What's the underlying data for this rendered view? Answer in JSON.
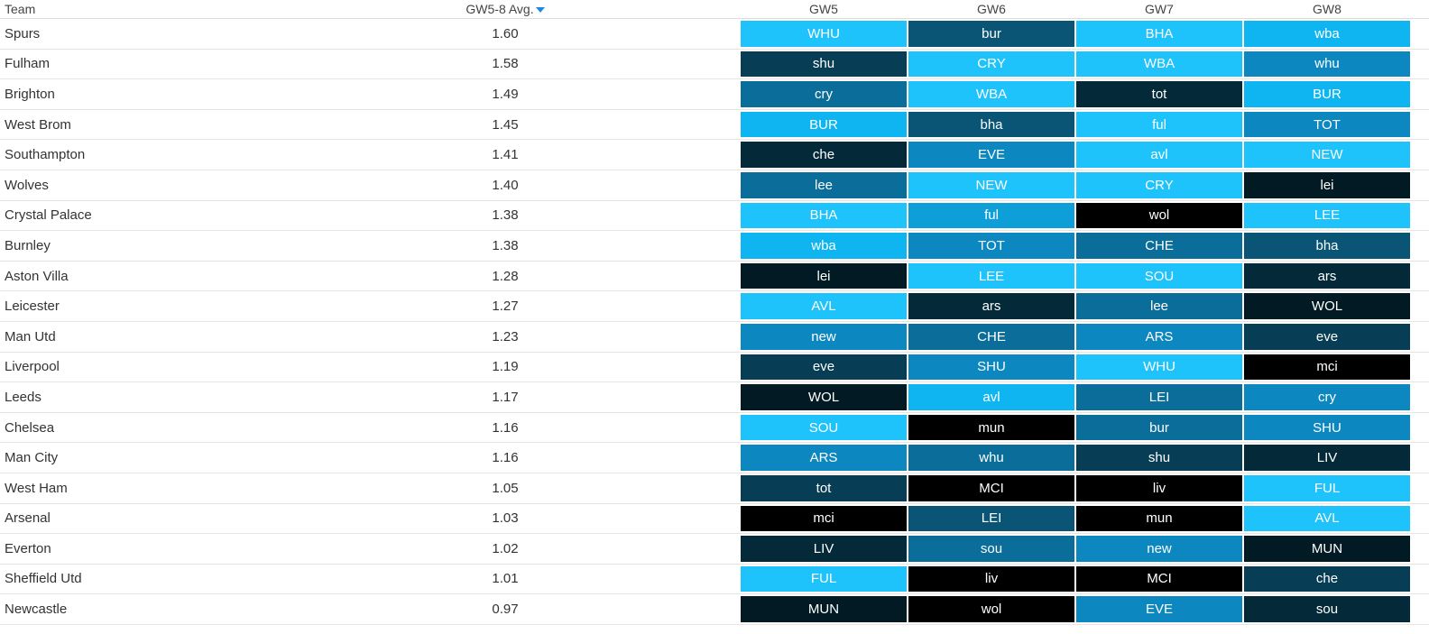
{
  "header": {
    "team": "Team",
    "avg": "GW5-8 Avg.",
    "gws": [
      "GW5",
      "GW6",
      "GW7",
      "GW8"
    ]
  },
  "palette": {
    "1": "#1ec3fb",
    "2": "#0eb5f0",
    "3": "#0f9fd8",
    "4": "#0c87c0",
    "5": "#0b6e9a",
    "6": "#0a5576",
    "7": "#073e56",
    "8": "#042a3a",
    "9": "#021a24",
    "10": "#000000"
  },
  "rows": [
    {
      "team": "Spurs",
      "avg": "1.60",
      "fixtures": [
        {
          "opp": "WHU",
          "level": 1
        },
        {
          "opp": "bur",
          "level": 6
        },
        {
          "opp": "BHA",
          "level": 1
        },
        {
          "opp": "wba",
          "level": 2
        }
      ]
    },
    {
      "team": "Fulham",
      "avg": "1.58",
      "fixtures": [
        {
          "opp": "shu",
          "level": 7
        },
        {
          "opp": "CRY",
          "level": 1
        },
        {
          "opp": "WBA",
          "level": 1
        },
        {
          "opp": "whu",
          "level": 4
        }
      ]
    },
    {
      "team": "Brighton",
      "avg": "1.49",
      "fixtures": [
        {
          "opp": "cry",
          "level": 5
        },
        {
          "opp": "WBA",
          "level": 1
        },
        {
          "opp": "tot",
          "level": 8
        },
        {
          "opp": "BUR",
          "level": 2
        }
      ]
    },
    {
      "team": "West Brom",
      "avg": "1.45",
      "fixtures": [
        {
          "opp": "BUR",
          "level": 2
        },
        {
          "opp": "bha",
          "level": 6
        },
        {
          "opp": "ful",
          "level": 1
        },
        {
          "opp": "TOT",
          "level": 4
        }
      ]
    },
    {
      "team": "Southampton",
      "avg": "1.41",
      "fixtures": [
        {
          "opp": "che",
          "level": 8
        },
        {
          "opp": "EVE",
          "level": 4
        },
        {
          "opp": "avl",
          "level": 1
        },
        {
          "opp": "NEW",
          "level": 1
        }
      ]
    },
    {
      "team": "Wolves",
      "avg": "1.40",
      "fixtures": [
        {
          "opp": "lee",
          "level": 5
        },
        {
          "opp": "NEW",
          "level": 1
        },
        {
          "opp": "CRY",
          "level": 1
        },
        {
          "opp": "lei",
          "level": 9
        }
      ]
    },
    {
      "team": "Crystal Palace",
      "avg": "1.38",
      "fixtures": [
        {
          "opp": "BHA",
          "level": 1
        },
        {
          "opp": "ful",
          "level": 3
        },
        {
          "opp": "wol",
          "level": 10
        },
        {
          "opp": "LEE",
          "level": 1
        }
      ]
    },
    {
      "team": "Burnley",
      "avg": "1.38",
      "fixtures": [
        {
          "opp": "wba",
          "level": 2
        },
        {
          "opp": "TOT",
          "level": 4
        },
        {
          "opp": "CHE",
          "level": 5
        },
        {
          "opp": "bha",
          "level": 6
        }
      ]
    },
    {
      "team": "Aston Villa",
      "avg": "1.28",
      "fixtures": [
        {
          "opp": "lei",
          "level": 9
        },
        {
          "opp": "LEE",
          "level": 1
        },
        {
          "opp": "SOU",
          "level": 1
        },
        {
          "opp": "ars",
          "level": 8
        }
      ]
    },
    {
      "team": "Leicester",
      "avg": "1.27",
      "fixtures": [
        {
          "opp": "AVL",
          "level": 1
        },
        {
          "opp": "ars",
          "level": 8
        },
        {
          "opp": "lee",
          "level": 5
        },
        {
          "opp": "WOL",
          "level": 9
        }
      ]
    },
    {
      "team": "Man Utd",
      "avg": "1.23",
      "fixtures": [
        {
          "opp": "new",
          "level": 4
        },
        {
          "opp": "CHE",
          "level": 5
        },
        {
          "opp": "ARS",
          "level": 4
        },
        {
          "opp": "eve",
          "level": 7
        }
      ]
    },
    {
      "team": "Liverpool",
      "avg": "1.19",
      "fixtures": [
        {
          "opp": "eve",
          "level": 7
        },
        {
          "opp": "SHU",
          "level": 4
        },
        {
          "opp": "WHU",
          "level": 1
        },
        {
          "opp": "mci",
          "level": 10
        }
      ]
    },
    {
      "team": "Leeds",
      "avg": "1.17",
      "fixtures": [
        {
          "opp": "WOL",
          "level": 9
        },
        {
          "opp": "avl",
          "level": 2
        },
        {
          "opp": "LEI",
          "level": 5
        },
        {
          "opp": "cry",
          "level": 4
        }
      ]
    },
    {
      "team": "Chelsea",
      "avg": "1.16",
      "fixtures": [
        {
          "opp": "SOU",
          "level": 1
        },
        {
          "opp": "mun",
          "level": 10
        },
        {
          "opp": "bur",
          "level": 5
        },
        {
          "opp": "SHU",
          "level": 4
        }
      ]
    },
    {
      "team": "Man City",
      "avg": "1.16",
      "fixtures": [
        {
          "opp": "ARS",
          "level": 4
        },
        {
          "opp": "whu",
          "level": 5
        },
        {
          "opp": "shu",
          "level": 7
        },
        {
          "opp": "LIV",
          "level": 8
        }
      ]
    },
    {
      "team": "West Ham",
      "avg": "1.05",
      "fixtures": [
        {
          "opp": "tot",
          "level": 7
        },
        {
          "opp": "MCI",
          "level": 10
        },
        {
          "opp": "liv",
          "level": 10
        },
        {
          "opp": "FUL",
          "level": 1
        }
      ]
    },
    {
      "team": "Arsenal",
      "avg": "1.03",
      "fixtures": [
        {
          "opp": "mci",
          "level": 10
        },
        {
          "opp": "LEI",
          "level": 6
        },
        {
          "opp": "mun",
          "level": 10
        },
        {
          "opp": "AVL",
          "level": 1
        }
      ]
    },
    {
      "team": "Everton",
      "avg": "1.02",
      "fixtures": [
        {
          "opp": "LIV",
          "level": 8
        },
        {
          "opp": "sou",
          "level": 5
        },
        {
          "opp": "new",
          "level": 4
        },
        {
          "opp": "MUN",
          "level": 9
        }
      ]
    },
    {
      "team": "Sheffield Utd",
      "avg": "1.01",
      "fixtures": [
        {
          "opp": "FUL",
          "level": 1
        },
        {
          "opp": "liv",
          "level": 10
        },
        {
          "opp": "MCI",
          "level": 10
        },
        {
          "opp": "che",
          "level": 7
        }
      ]
    },
    {
      "team": "Newcastle",
      "avg": "0.97",
      "fixtures": [
        {
          "opp": "MUN",
          "level": 9
        },
        {
          "opp": "wol",
          "level": 10
        },
        {
          "opp": "EVE",
          "level": 4
        },
        {
          "opp": "sou",
          "level": 8
        }
      ]
    }
  ]
}
